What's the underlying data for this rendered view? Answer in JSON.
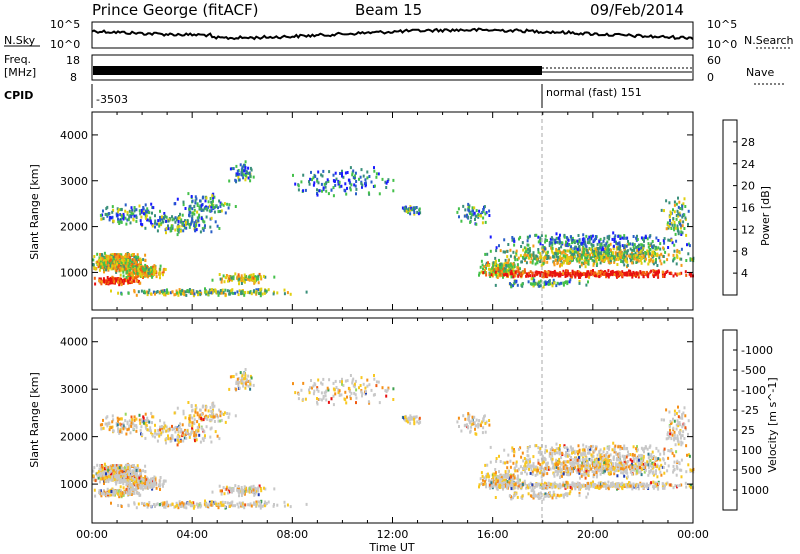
{
  "header": {
    "station": "Prince George (fitACF)",
    "beam": "Beam 15",
    "date": "09/Feb/2014"
  },
  "noise_panel": {
    "left_label": "N.Sky",
    "left_ticks": [
      "10^5",
      "10^0"
    ],
    "right_label": "N.Search",
    "right_ticks": [
      "10^5",
      "10^0"
    ]
  },
  "freq_panel": {
    "left_label_1": "Freq.",
    "left_label_2": "[MHz]",
    "left_ticks": [
      "18",
      "8"
    ],
    "right_label": "Nave",
    "right_ticks": [
      "60",
      "0"
    ]
  },
  "cpid_panel": {
    "label": "CPID",
    "first_program": "-3503",
    "second_program": "normal (fast) 151",
    "switch_time": "18:00"
  },
  "axes": {
    "ylabel": "Slant Range [km]",
    "xlabel": "Time UT",
    "y_ticks": [
      "1000",
      "2000",
      "3000",
      "4000"
    ],
    "x_ticks": [
      "00:00",
      "04:00",
      "08:00",
      "12:00",
      "16:00",
      "20:00",
      "00:00"
    ]
  },
  "power_scale": {
    "label": "Power [dB]",
    "ticks": [
      "4",
      "8",
      "12",
      "16",
      "20",
      "24",
      "28"
    ],
    "colors": [
      "#1a1aff",
      "#2a5fc8",
      "#3a8f7a",
      "#44c04a",
      "#e0d010",
      "#f59a18",
      "#f06010",
      "#e81010"
    ]
  },
  "velocity_scale": {
    "label": "Velocity [m s^-1]",
    "ticks": [
      "1000",
      "500",
      "100",
      "25",
      "-25",
      "-100",
      "-500",
      "-1000"
    ],
    "colors": [
      "#1e3cb4",
      "#2f7c8c",
      "#3fa050",
      "#9ad860",
      "#c8c8c8",
      "#f8c820",
      "#f59018",
      "#f05a10",
      "#e81010"
    ]
  },
  "chart_data": {
    "type": "heatmap",
    "x_range_hours": [
      0,
      24
    ],
    "y_range_km": [
      180,
      4500
    ],
    "grid": false
  }
}
